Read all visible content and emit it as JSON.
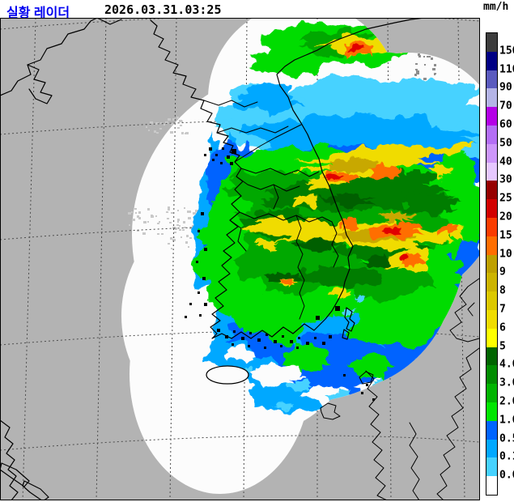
{
  "header": {
    "title": "실황 레이더",
    "title_color": "#0000f0",
    "timestamp": "2026.03.31.03:25"
  },
  "legend": {
    "unit": "mm/h",
    "segments": [
      {
        "color": "#3c3c3c",
        "label": "150"
      },
      {
        "color": "#000084",
        "label": "110"
      },
      {
        "color": "#5a5abe",
        "label": "90"
      },
      {
        "color": "#b4b4e6",
        "label": "70"
      },
      {
        "color": "#b400e6",
        "label": "60"
      },
      {
        "color": "#b46ef5",
        "label": "50"
      },
      {
        "color": "#cd96fa",
        "label": "40"
      },
      {
        "color": "#e6c8ff",
        "label": "30"
      },
      {
        "color": "#960000",
        "label": "25"
      },
      {
        "color": "#d20000",
        "label": "20"
      },
      {
        "color": "#fa3c00",
        "label": "15"
      },
      {
        "color": "#ff6e00",
        "label": "10"
      },
      {
        "color": "#bea000",
        "label": "9"
      },
      {
        "color": "#cdb400",
        "label": "8"
      },
      {
        "color": "#dcc800",
        "label": "7"
      },
      {
        "color": "#f0dc00",
        "label": "6"
      },
      {
        "color": "#ffff00",
        "label": "5"
      },
      {
        "color": "#006400",
        "label": "4.0"
      },
      {
        "color": "#008c00",
        "label": "3.0"
      },
      {
        "color": "#00b400",
        "label": "2.0"
      },
      {
        "color": "#00e600",
        "label": "1.0"
      },
      {
        "color": "#0064ff",
        "label": "0.5"
      },
      {
        "color": "#00a8ff",
        "label": "0.1"
      },
      {
        "color": "#46d2ff",
        "label": "0.0"
      },
      {
        "color": "#ffffff",
        "label": ""
      }
    ]
  },
  "map": {
    "background_color": "#b3b3b3",
    "coverage_color": "#fcfcfc",
    "coast_color": "#000000",
    "grid_color": "#4d4d4d",
    "clutter_color": "#c9c9c9",
    "echo_palette": {
      "cyan": "#46d2ff",
      "light_blue": "#00a8ff",
      "blue": "#0064ff",
      "green_bright": "#00dc00",
      "green": "#00a800",
      "green_mid": "#007d00",
      "green_dark": "#005f00",
      "yellow": "#f0dc00",
      "yellow_dark": "#c8a800",
      "orange": "#ff6e00",
      "red": "#e10000"
    }
  }
}
